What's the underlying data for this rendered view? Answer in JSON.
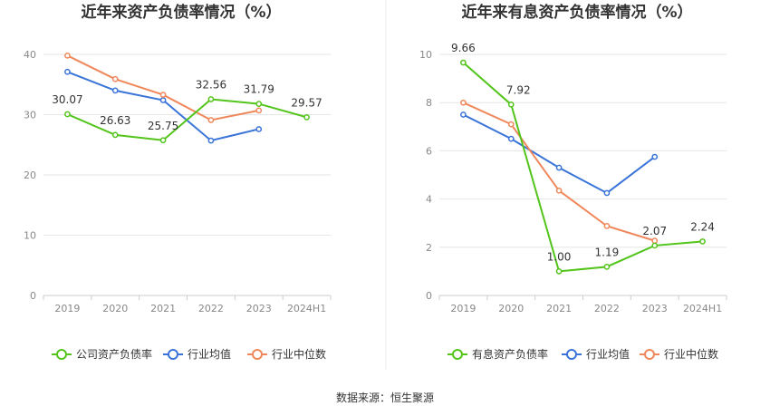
{
  "chart_data": [
    {
      "type": "line",
      "title": "近年来资产负债率情况（%）",
      "categories": [
        "2019",
        "2020",
        "2021",
        "2022",
        "2023",
        "2024H1"
      ],
      "ylim": [
        0,
        40
      ],
      "yticks": [
        "0",
        "10",
        "20",
        "30",
        "40"
      ],
      "grid": true,
      "legend_position": "bottom",
      "series": [
        {
          "name": "公司资产负债率",
          "color": "#52c41a",
          "values": [
            30.07,
            26.63,
            25.75,
            32.56,
            31.79,
            29.57
          ],
          "labels": [
            "30.07",
            "26.63",
            "25.75",
            "32.56",
            "31.79",
            "29.57"
          ]
        },
        {
          "name": "行业均值",
          "color": "#3a74d8",
          "values": [
            37.1,
            34.0,
            32.4,
            25.7,
            27.6,
            null
          ]
        },
        {
          "name": "行业中位数",
          "color": "#f0875a",
          "values": [
            39.8,
            35.9,
            33.3,
            29.1,
            30.7,
            null
          ]
        }
      ]
    },
    {
      "type": "line",
      "title": "近年来有息资产负债率情况（%）",
      "categories": [
        "2019",
        "2020",
        "2021",
        "2022",
        "2023",
        "2024H1"
      ],
      "ylim": [
        0,
        10
      ],
      "yticks": [
        "0",
        "2",
        "4",
        "6",
        "8",
        "10"
      ],
      "grid": true,
      "legend_position": "bottom",
      "series": [
        {
          "name": "有息资产负债率",
          "color": "#52c41a",
          "values": [
            9.66,
            7.92,
            1.0,
            1.19,
            2.07,
            2.24
          ],
          "labels": [
            "9.66",
            "7.92",
            "1.00",
            "1.19",
            "2.07",
            "2.24"
          ]
        },
        {
          "name": "行业均值",
          "color": "#3a74d8",
          "values": [
            7.5,
            6.5,
            5.3,
            4.25,
            5.75,
            null
          ]
        },
        {
          "name": "行业中位数",
          "color": "#f0875a",
          "values": [
            8.0,
            7.1,
            4.35,
            2.88,
            2.27,
            null
          ]
        }
      ]
    }
  ],
  "source": "数据来源：恒生聚源"
}
